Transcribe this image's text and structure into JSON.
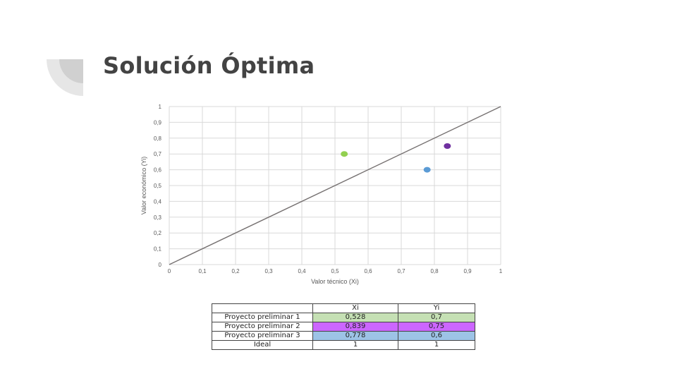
{
  "slide": {
    "title": "Solución Óptima"
  },
  "chart_data": {
    "type": "scatter",
    "xlabel": "Valor técnico (Xi)",
    "ylabel": "Valor económico (Yi)",
    "xlim": [
      0,
      1
    ],
    "ylim": [
      0,
      1
    ],
    "grid": true,
    "x_ticks": [
      "0",
      "0,1",
      "0,2",
      "0,3",
      "0,4",
      "0,5",
      "0,6",
      "0,7",
      "0,8",
      "0,9",
      "1"
    ],
    "y_ticks": [
      "0",
      "0,1",
      "0,2",
      "0,3",
      "0,4",
      "0,5",
      "0,6",
      "0,7",
      "0,8",
      "0,9",
      "1"
    ],
    "reference_line": {
      "from": [
        0,
        0
      ],
      "to": [
        1,
        1
      ],
      "color": "#767171"
    },
    "points": [
      {
        "x": 0.528,
        "y": 0.7,
        "color": "#92d050"
      },
      {
        "x": 0.839,
        "y": 0.75,
        "color": "#7030a0"
      },
      {
        "x": 0.778,
        "y": 0.6,
        "color": "#5b9bd5"
      }
    ]
  },
  "table": {
    "headers": [
      "",
      "Xi",
      "Yi"
    ],
    "rows": [
      {
        "name": "Proyecto preliminar 1",
        "xi": "0,528",
        "yi": "0,7",
        "color": "#c5e0b4"
      },
      {
        "name": "Proyecto preliminar 2",
        "xi": "0,839",
        "yi": "0,75",
        "color": "#cc66ff"
      },
      {
        "name": "Proyecto preliminar 3",
        "xi": "0,778",
        "yi": "0,6",
        "color": "#9dc3e6"
      },
      {
        "name": "Ideal",
        "xi": "1",
        "yi": "1",
        "color": "#ffffff"
      }
    ]
  }
}
